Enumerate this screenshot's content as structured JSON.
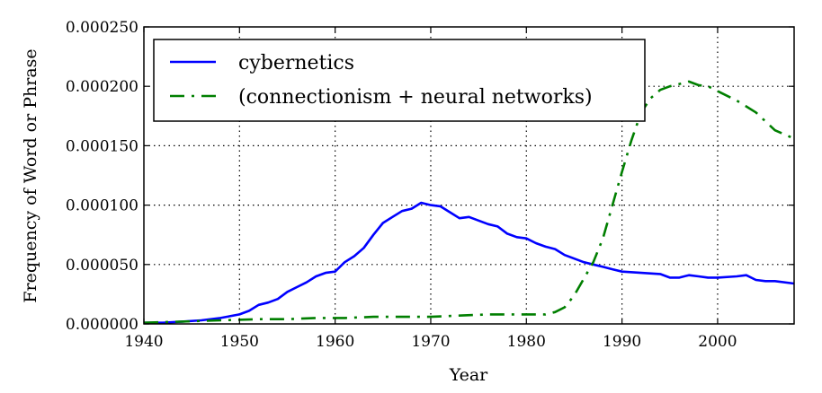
{
  "chart_data": {
    "type": "line",
    "title": "",
    "xlabel": "Year",
    "ylabel": "Frequency of Word or Phrase",
    "xlim": [
      1940,
      2008
    ],
    "ylim": [
      0,
      0.00025
    ],
    "xticks": [
      1940,
      1950,
      1960,
      1970,
      1980,
      1990,
      2000
    ],
    "xtick_labels": [
      "1940",
      "1950",
      "1960",
      "1970",
      "1980",
      "1990",
      "2000"
    ],
    "yticks": [
      0,
      5e-05,
      0.0001,
      0.00015,
      0.0002,
      0.00025
    ],
    "ytick_labels": [
      "0.000000",
      "0.000050",
      "0.000100",
      "0.000150",
      "0.000200",
      "0.000250"
    ],
    "grid": true,
    "legend_position": "top-left",
    "series": [
      {
        "name": "cybernetics",
        "color": "#0000ff",
        "style": "solid",
        "x": [
          1940,
          1942,
          1944,
          1946,
          1948,
          1950,
          1951,
          1952,
          1953,
          1954,
          1955,
          1956,
          1957,
          1958,
          1959,
          1960,
          1961,
          1962,
          1963,
          1964,
          1965,
          1966,
          1967,
          1968,
          1969,
          1970,
          1971,
          1972,
          1973,
          1974,
          1975,
          1976,
          1977,
          1978,
          1979,
          1980,
          1981,
          1982,
          1983,
          1984,
          1985,
          1986,
          1987,
          1988,
          1989,
          1990,
          1992,
          1994,
          1995,
          1996,
          1997,
          1998,
          1999,
          2000,
          2002,
          2003,
          2004,
          2005,
          2006,
          2008
        ],
        "y": [
          1e-06,
          1e-06,
          2e-06,
          3e-06,
          5e-06,
          8e-06,
          1.1e-05,
          1.6e-05,
          1.8e-05,
          2.1e-05,
          2.7e-05,
          3.1e-05,
          3.5e-05,
          4e-05,
          4.3e-05,
          4.4e-05,
          5.2e-05,
          5.7e-05,
          6.4e-05,
          7.5e-05,
          8.5e-05,
          9e-05,
          9.5e-05,
          9.7e-05,
          0.000102,
          0.0001,
          9.9e-05,
          9.4e-05,
          8.9e-05,
          9e-05,
          8.7e-05,
          8.4e-05,
          8.2e-05,
          7.6e-05,
          7.3e-05,
          7.2e-05,
          6.8e-05,
          6.5e-05,
          6.3e-05,
          5.8e-05,
          5.5e-05,
          5.2e-05,
          5e-05,
          4.8e-05,
          4.6e-05,
          4.4e-05,
          4.3e-05,
          4.2e-05,
          3.9e-05,
          3.9e-05,
          4.1e-05,
          4e-05,
          3.9e-05,
          3.9e-05,
          4e-05,
          4.1e-05,
          3.7e-05,
          3.6e-05,
          3.6e-05,
          3.4e-05
        ]
      },
      {
        "name": "(connectionism + neural networks)",
        "color": "#007f00",
        "style": "dash-dot",
        "x": [
          1940,
          1944,
          1948,
          1952,
          1955,
          1958,
          1961,
          1964,
          1967,
          1970,
          1973,
          1976,
          1979,
          1982,
          1983,
          1984,
          1985,
          1986,
          1987,
          1988,
          1989,
          1990,
          1991,
          1992,
          1993,
          1994,
          1995,
          1996,
          1997,
          1998,
          1999,
          2000,
          2002,
          2004,
          2006,
          2008
        ],
        "y": [
          1e-06,
          2e-06,
          3e-06,
          4e-06,
          4e-06,
          5e-06,
          5e-06,
          6e-06,
          6e-06,
          6e-06,
          7e-06,
          8e-06,
          8e-06,
          8e-06,
          1e-05,
          1.4e-05,
          2.4e-05,
          3.8e-05,
          5.2e-05,
          7.2e-05,
          0.0001,
          0.000128,
          0.000155,
          0.000178,
          0.00019,
          0.000197,
          0.0002,
          0.000202,
          0.000204,
          0.000201,
          0.0002,
          0.000196,
          0.000188,
          0.000178,
          0.000163,
          0.000156
        ]
      }
    ]
  }
}
